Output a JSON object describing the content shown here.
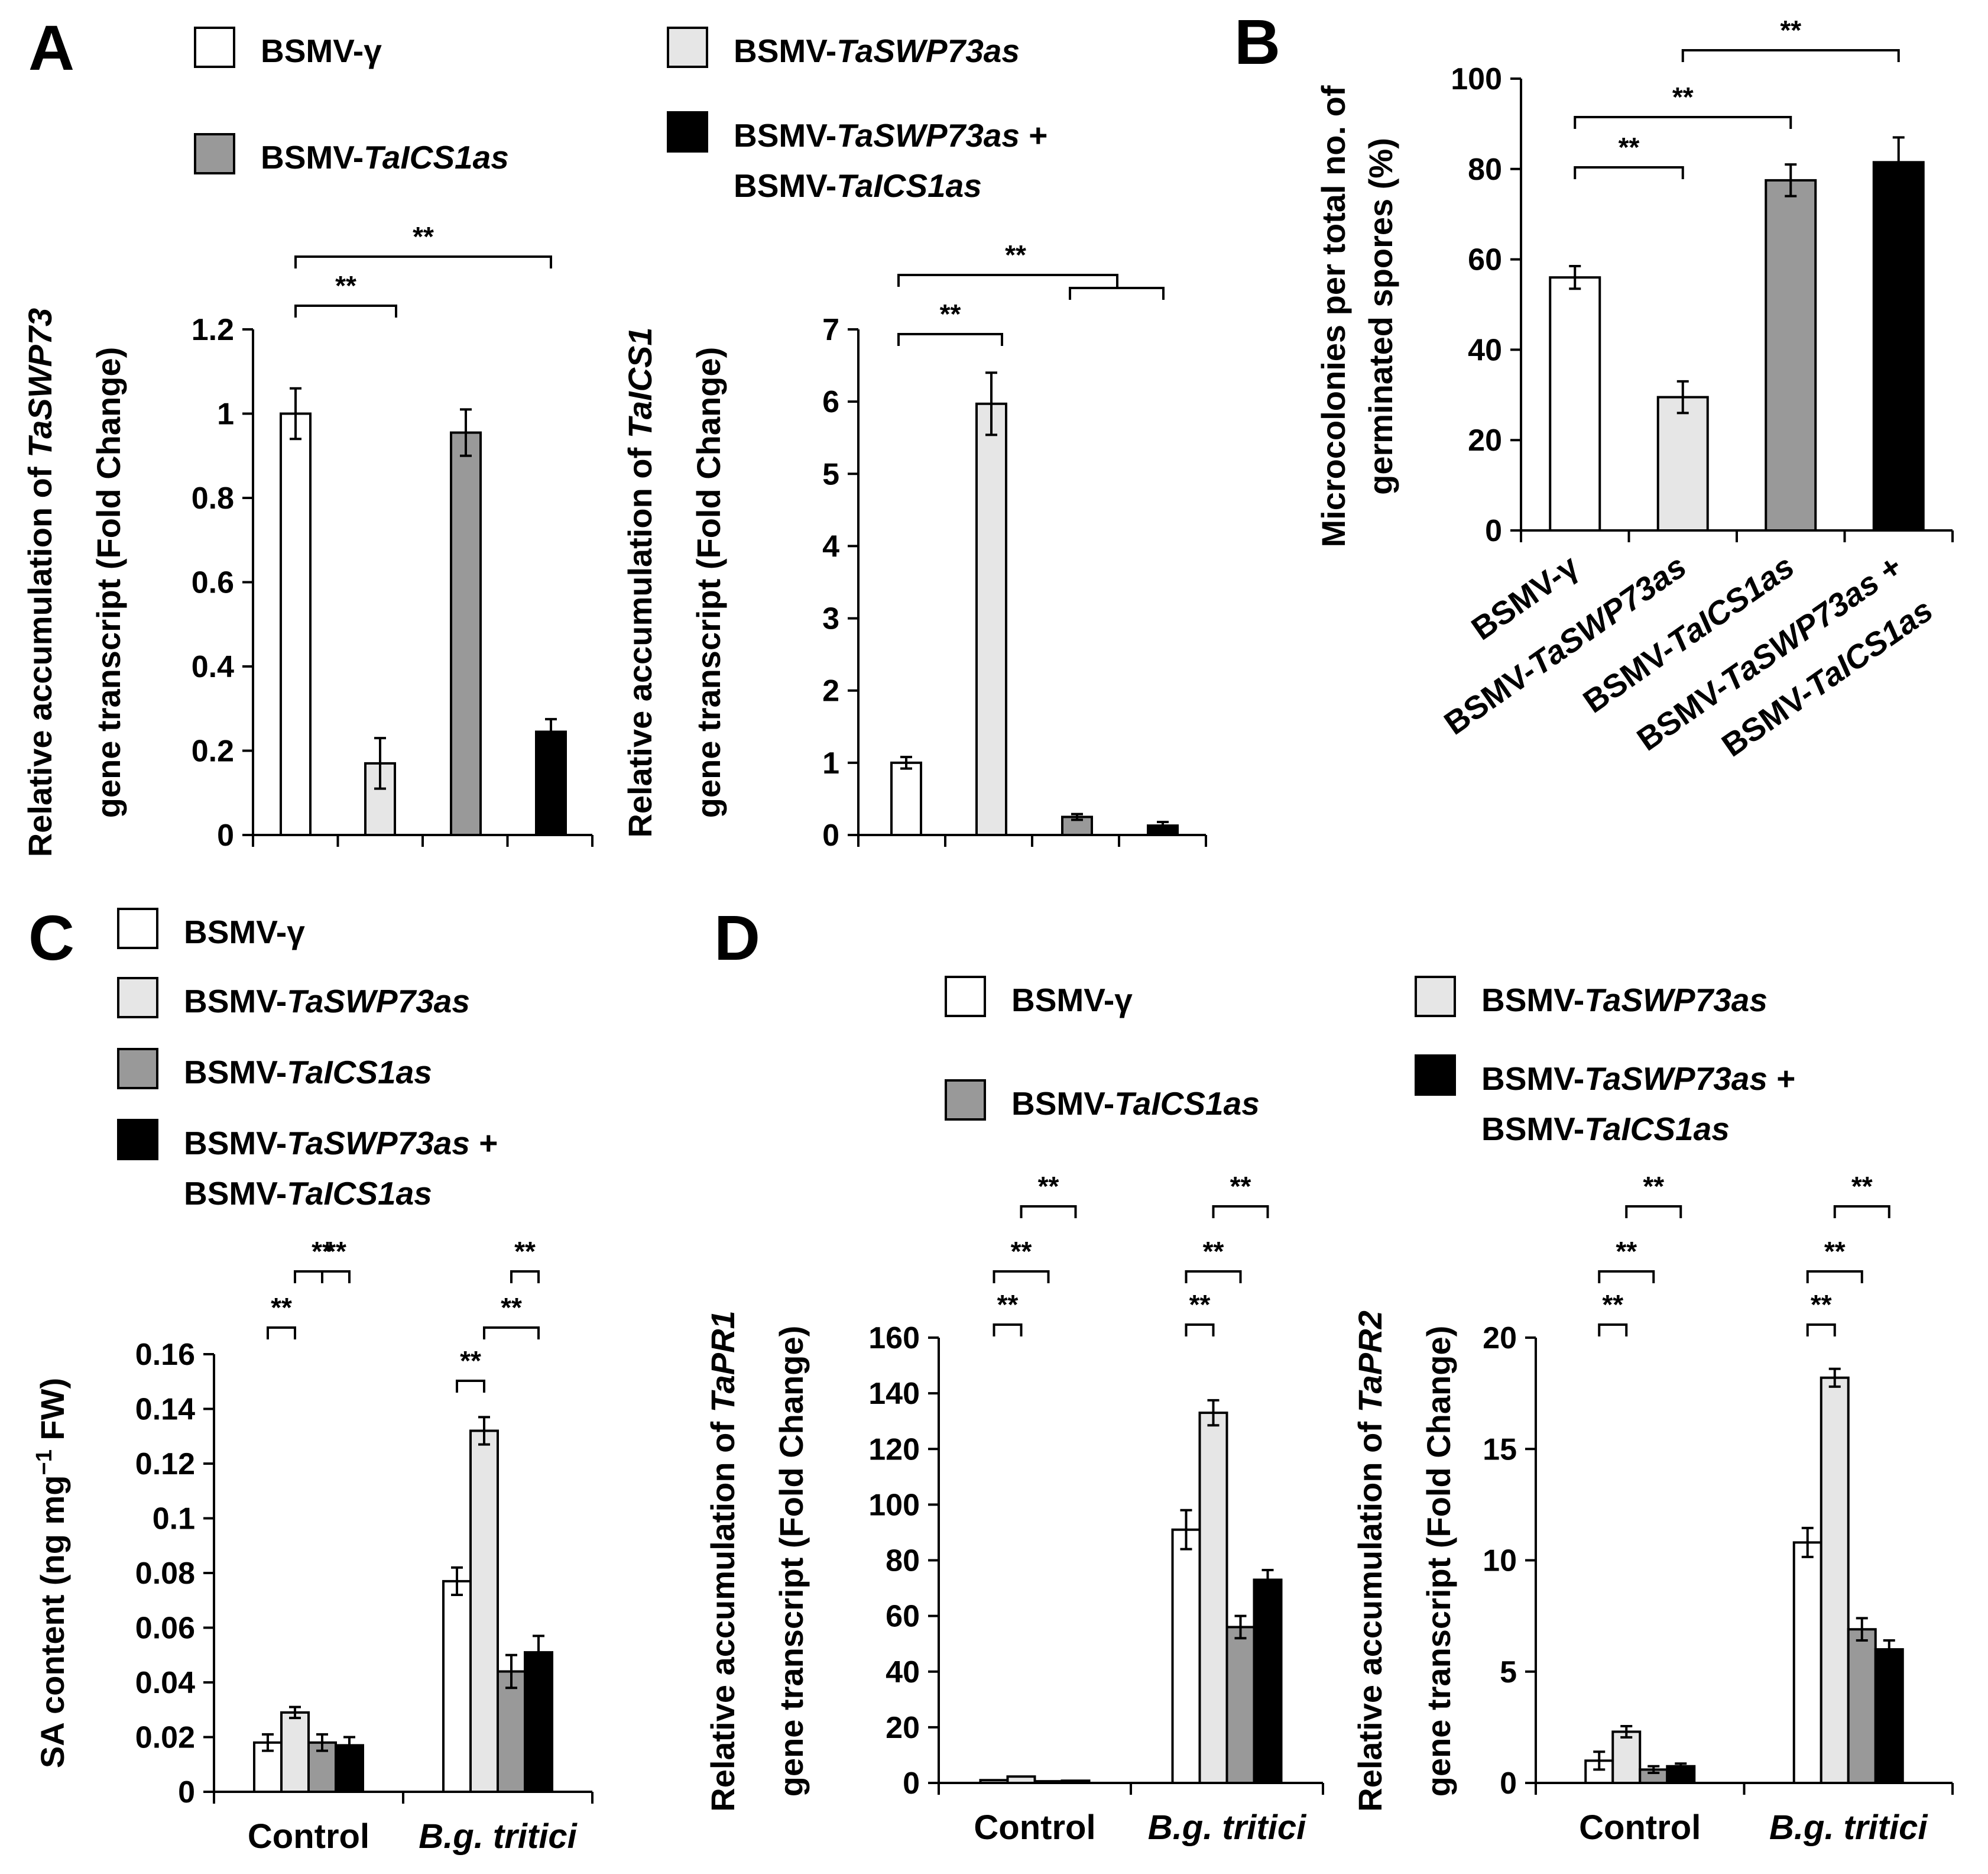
{
  "panels": [
    {
      "id": "A",
      "label": "A"
    },
    {
      "id": "B",
      "label": "B"
    },
    {
      "id": "C",
      "label": "C"
    },
    {
      "id": "D",
      "label": "D"
    }
  ],
  "legend_entries": [
    {
      "prefix": "BSMV-",
      "italic": "γ",
      "suffix": "",
      "color": "#ffffff",
      "italic_style": false
    },
    {
      "prefix": "BSMV-",
      "italic": "TaSWP73as",
      "suffix": "",
      "color": "#e6e6e6",
      "italic_style": true
    },
    {
      "prefix": "BSMV-",
      "italic": "TaICS1as",
      "suffix": "",
      "color": "#999999",
      "italic_style": true
    },
    {
      "prefix": "BSMV-",
      "italic": "TaSWP73as",
      "suffix": " +",
      "line2_prefix": "BSMV-",
      "line2_italic": "TaICS1as",
      "color": "#000000",
      "italic_style": true
    }
  ],
  "significance_mark": "**",
  "chart_data": [
    {
      "id": "A-left",
      "type": "bar",
      "ylabel_line1": "Relative accumulation of ",
      "ylabel_line1_italic": "TaSWP73",
      "ylabel_line2": "gene transcript  (Fold Change)",
      "ylim": [
        0,
        1.2
      ],
      "ticks": [
        "0",
        "0.2",
        "0.4",
        "0.6",
        "0.8",
        "1",
        "1.2"
      ],
      "tick_values": [
        0,
        0.2,
        0.4,
        0.6,
        0.8,
        1.0,
        1.2
      ],
      "values": [
        1.0,
        0.17,
        0.955,
        0.245
      ],
      "errors": [
        0.06,
        0.06,
        0.055,
        0.03
      ],
      "colors": [
        "#ffffff",
        "#e6e6e6",
        "#999999",
        "#000000"
      ]
    },
    {
      "id": "A-right",
      "type": "bar",
      "ylabel_line1": "Relative accumulation of ",
      "ylabel_line1_italic": "TaICS1",
      "ylabel_line2": "gene transcript  (Fold Change)",
      "ylim": [
        0,
        7
      ],
      "ticks": [
        "0",
        "1",
        "2",
        "3",
        "4",
        "5",
        "6",
        "7"
      ],
      "tick_values": [
        0,
        1,
        2,
        3,
        4,
        5,
        6,
        7
      ],
      "values": [
        1.0,
        5.97,
        0.25,
        0.13
      ],
      "errors": [
        0.08,
        0.43,
        0.04,
        0.05
      ],
      "colors": [
        "#ffffff",
        "#e6e6e6",
        "#999999",
        "#000000"
      ]
    },
    {
      "id": "B",
      "type": "bar",
      "ylabel_line1": "Microcolonies per total no. of",
      "ylabel_line2": "germinated spores (%)",
      "ylim": [
        0,
        100
      ],
      "ticks": [
        "0",
        "20",
        "40",
        "60",
        "80",
        "100"
      ],
      "tick_values": [
        0,
        20,
        40,
        60,
        80,
        100
      ],
      "values": [
        56,
        29.5,
        77.5,
        81.5
      ],
      "errors": [
        2.5,
        3.5,
        3.5,
        5.5
      ],
      "colors": [
        "#ffffff",
        "#e6e6e6",
        "#999999",
        "#000000"
      ],
      "categories": [
        {
          "line1_prefix": "BSMV-γ",
          "line1_italic": "",
          "line1_suffix": ""
        },
        {
          "line1_prefix": "BSMV-",
          "line1_italic": "TaSWP73as",
          "line1_suffix": ""
        },
        {
          "line1_prefix": "BSMV-",
          "line1_italic": "TaICS1as",
          "line1_suffix": ""
        },
        {
          "line1_prefix": "BSMV-",
          "line1_italic": "TaSWP73as",
          "line1_suffix": " +",
          "line2_prefix": "BSMV-",
          "line2_italic": "TaICS1as"
        }
      ]
    },
    {
      "id": "C",
      "type": "bar",
      "ylabel": "SA content (ng mg",
      "ylabel_sup": "−1",
      "ylabel_end": " FW)",
      "ylim": [
        0,
        0.16
      ],
      "ticks": [
        "0",
        "0.02",
        "0.04",
        "0.06",
        "0.08",
        "0.1",
        "0.12",
        "0.14",
        "0.16"
      ],
      "tick_values": [
        0,
        0.02,
        0.04,
        0.06,
        0.08,
        0.1,
        0.12,
        0.14,
        0.16
      ],
      "groups": [
        "Control",
        "B.g. tritici"
      ],
      "group_italic": [
        false,
        true
      ],
      "series_values": [
        [
          0.018,
          0.029,
          0.018,
          0.017
        ],
        [
          0.077,
          0.132,
          0.044,
          0.051
        ]
      ],
      "series_errors": [
        [
          0.003,
          0.002,
          0.003,
          0.003
        ],
        [
          0.005,
          0.005,
          0.006,
          0.006
        ]
      ],
      "colors": [
        "#ffffff",
        "#e6e6e6",
        "#999999",
        "#000000"
      ]
    },
    {
      "id": "D-left",
      "type": "bar",
      "ylabel_line1": "Relative accumulation of ",
      "ylabel_line1_italic": "TaPR1",
      "ylabel_line2": "gene transcript  (Fold Change)",
      "ylim": [
        0,
        160
      ],
      "ticks": [
        "0",
        "20",
        "40",
        "60",
        "80",
        "100",
        "120",
        "140",
        "160"
      ],
      "tick_values": [
        0,
        20,
        40,
        60,
        80,
        100,
        120,
        140,
        160
      ],
      "groups": [
        "Control",
        "B.g. tritici"
      ],
      "group_italic": [
        false,
        true
      ],
      "series_values": [
        [
          1.0,
          2.3,
          0.6,
          0.8
        ],
        [
          91,
          133,
          56,
          73
        ]
      ],
      "series_errors": [
        [
          0,
          0,
          0,
          0
        ],
        [
          7,
          4.5,
          4,
          3.5
        ]
      ],
      "colors": [
        "#ffffff",
        "#e6e6e6",
        "#999999",
        "#000000"
      ]
    },
    {
      "id": "D-right",
      "type": "bar",
      "ylabel_line1": "Relative accumulation of ",
      "ylabel_line1_italic": "TaPR2",
      "ylabel_line2": "gene transcript  (Fold Change)",
      "ylim": [
        0,
        20
      ],
      "ticks": [
        "0",
        "5",
        "10",
        "15",
        "20"
      ],
      "tick_values": [
        0,
        5,
        10,
        15,
        20
      ],
      "groups": [
        "Control",
        "B.g. tritici"
      ],
      "group_italic": [
        false,
        true
      ],
      "series_values": [
        [
          1.0,
          2.3,
          0.6,
          0.75
        ],
        [
          10.8,
          18.2,
          6.9,
          6.0
        ]
      ],
      "series_errors": [
        [
          0.4,
          0.25,
          0.15,
          0.12
        ],
        [
          0.65,
          0.4,
          0.5,
          0.4
        ]
      ],
      "colors": [
        "#ffffff",
        "#e6e6e6",
        "#999999",
        "#000000"
      ]
    }
  ]
}
